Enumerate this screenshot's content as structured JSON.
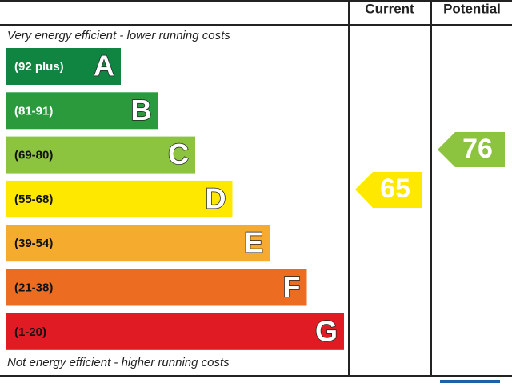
{
  "header": {
    "current": "Current",
    "potential": "Potential"
  },
  "top_note": "Very energy efficient - lower running costs",
  "bottom_note": "Not energy efficient - higher running costs",
  "bands": [
    {
      "range": "(92 plus)",
      "letter": "A",
      "color": "#108542",
      "text_color": "#ffffff"
    },
    {
      "range": "(81-91)",
      "letter": "B",
      "color": "#2a9a3c",
      "text_color": "#ffffff"
    },
    {
      "range": "(69-80)",
      "letter": "C",
      "color": "#8cc43f",
      "text_color": "#111111"
    },
    {
      "range": "(55-68)",
      "letter": "D",
      "color": "#ffe800",
      "text_color": "#111111"
    },
    {
      "range": "(39-54)",
      "letter": "E",
      "color": "#f4ab2e",
      "text_color": "#111111"
    },
    {
      "range": "(21-38)",
      "letter": "F",
      "color": "#ec6c22",
      "text_color": "#111111"
    },
    {
      "range": "(1-20)",
      "letter": "G",
      "color": "#e01b23",
      "text_color": "#111111"
    }
  ],
  "current": 65,
  "potential": 76
}
